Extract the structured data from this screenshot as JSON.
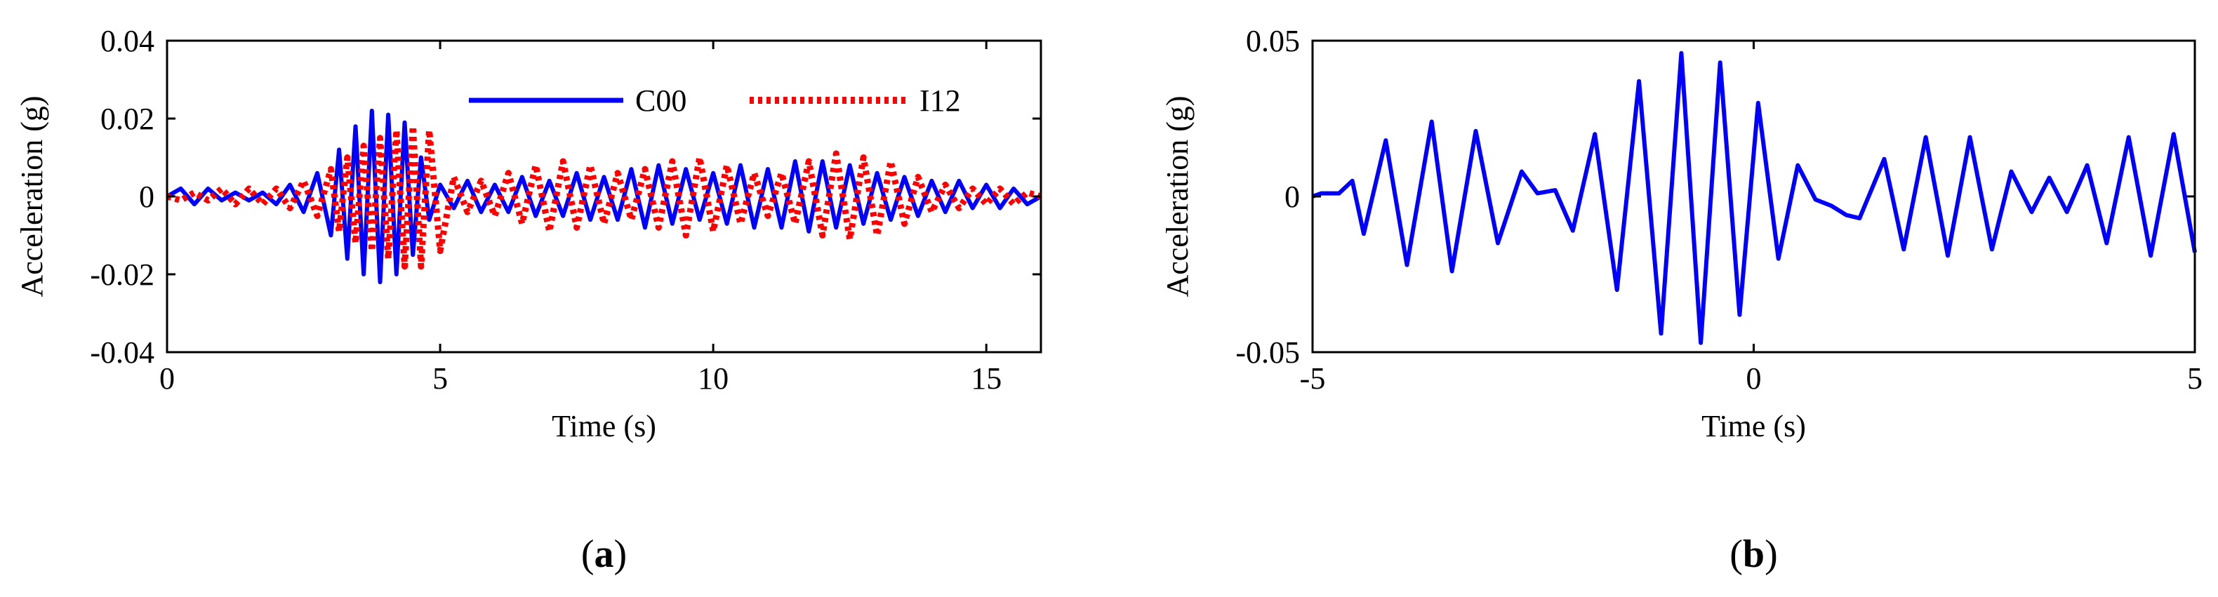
{
  "colors": {
    "blue": "#0000ff",
    "red": "#ff0000",
    "axis": "#000000"
  },
  "chart_data": [
    {
      "type": "line",
      "panel_label": {
        "open": "(",
        "letter": "a",
        "close": ")"
      },
      "xlabel": "Time (s)",
      "ylabel": "Acceleration (g)",
      "xlim": [
        0,
        16
      ],
      "ylim": [
        -0.04,
        0.04
      ],
      "xticks": [
        0,
        5,
        10,
        15
      ],
      "xtick_labels": [
        "0",
        "5",
        "10",
        "15"
      ],
      "yticks": [
        -0.04,
        -0.02,
        0,
        0.02,
        0.04
      ],
      "ytick_labels": [
        "-0.04",
        "-0.02",
        "0",
        "0.02",
        "0.04"
      ],
      "grid": false,
      "legend": "top-right",
      "series": [
        {
          "name": "C00",
          "color": "#0000ff",
          "style": "solid",
          "x": [
            0,
            0.25,
            0.5,
            0.75,
            1,
            1.25,
            1.5,
            1.75,
            2,
            2.25,
            2.5,
            2.75,
            3,
            3.15,
            3.3,
            3.45,
            3.6,
            3.75,
            3.9,
            4.05,
            4.2,
            4.35,
            4.5,
            4.65,
            4.8,
            5,
            5.25,
            5.5,
            5.75,
            6,
            6.25,
            6.5,
            6.75,
            7,
            7.25,
            7.5,
            7.75,
            8,
            8.25,
            8.5,
            8.75,
            9,
            9.25,
            9.5,
            9.75,
            10,
            10.25,
            10.5,
            10.75,
            11,
            11.25,
            11.5,
            11.75,
            12,
            12.25,
            12.5,
            12.75,
            13,
            13.25,
            13.5,
            13.75,
            14,
            14.25,
            14.5,
            14.75,
            15,
            15.25,
            15.5,
            15.75,
            16
          ],
          "y": [
            0,
            0.002,
            -0.002,
            0.002,
            -0.001,
            0.001,
            -0.001,
            0.001,
            -0.002,
            0.003,
            -0.004,
            0.006,
            -0.01,
            0.012,
            -0.016,
            0.018,
            -0.02,
            0.022,
            -0.022,
            0.021,
            -0.02,
            0.019,
            -0.015,
            0.01,
            -0.006,
            0.003,
            -0.003,
            0.004,
            -0.004,
            0.003,
            -0.004,
            0.005,
            -0.005,
            0.004,
            -0.005,
            0.006,
            -0.006,
            0.005,
            -0.006,
            0.007,
            -0.008,
            0.008,
            -0.007,
            0.007,
            -0.006,
            0.006,
            -0.007,
            0.008,
            -0.008,
            0.007,
            -0.008,
            0.009,
            -0.009,
            0.009,
            -0.008,
            0.008,
            -0.007,
            0.006,
            -0.006,
            0.005,
            -0.005,
            0.004,
            -0.004,
            0.004,
            -0.003,
            0.003,
            -0.003,
            0.002,
            -0.002,
            0
          ]
        },
        {
          "name": "I12",
          "color": "#ff0000",
          "style": "dotted",
          "x": [
            0,
            0.25,
            0.5,
            0.75,
            1,
            1.25,
            1.5,
            1.75,
            2,
            2.25,
            2.5,
            2.75,
            3,
            3.15,
            3.3,
            3.45,
            3.6,
            3.75,
            3.9,
            4.05,
            4.2,
            4.35,
            4.5,
            4.65,
            4.8,
            5,
            5.25,
            5.5,
            5.75,
            6,
            6.25,
            6.5,
            6.75,
            7,
            7.25,
            7.5,
            7.75,
            8,
            8.25,
            8.5,
            8.75,
            9,
            9.25,
            9.5,
            9.75,
            10,
            10.25,
            10.5,
            10.75,
            11,
            11.25,
            11.5,
            11.75,
            12,
            12.25,
            12.5,
            12.75,
            13,
            13.25,
            13.5,
            13.75,
            14,
            14.25,
            14.5,
            14.75,
            15,
            15.25,
            15.5,
            15.75,
            16
          ],
          "y": [
            0,
            -0.001,
            0.001,
            -0.001,
            0.002,
            -0.002,
            0.002,
            -0.002,
            0.002,
            -0.003,
            0.004,
            -0.005,
            0.007,
            -0.009,
            0.01,
            -0.012,
            0.013,
            -0.014,
            0.015,
            -0.016,
            0.017,
            -0.018,
            0.018,
            -0.018,
            0.017,
            -0.014,
            0.005,
            -0.004,
            0.004,
            -0.005,
            0.006,
            -0.007,
            0.008,
            -0.009,
            0.009,
            -0.008,
            0.008,
            -0.007,
            0.006,
            -0.006,
            0.007,
            -0.008,
            0.009,
            -0.01,
            0.01,
            -0.009,
            0.008,
            -0.007,
            0.006,
            -0.005,
            0.006,
            -0.007,
            0.009,
            -0.01,
            0.011,
            -0.011,
            0.01,
            -0.01,
            0.009,
            -0.007,
            0.005,
            -0.004,
            0.003,
            -0.003,
            0.002,
            -0.002,
            0.002,
            -0.002,
            0.001,
            0
          ]
        }
      ]
    },
    {
      "type": "line",
      "panel_label": {
        "open": "(",
        "letter": "b",
        "close": ")"
      },
      "xlabel": "Time (s)",
      "ylabel": "Acceleration (g)",
      "xlim": [
        -5,
        5
      ],
      "ylim": [
        -0.05,
        0.05
      ],
      "xticks": [
        -5,
        0,
        5
      ],
      "xtick_labels": [
        "-5",
        "0",
        "5"
      ],
      "yticks": [
        -0.05,
        0,
        0.05
      ],
      "ytick_labels": [
        "-0.05",
        "0",
        "0.05"
      ],
      "grid": false,
      "series": [
        {
          "color": "#0000ff",
          "style": "solid",
          "x": [
            -5,
            -4.9,
            -4.82,
            -4.7,
            -4.55,
            -4.42,
            -4.17,
            -3.93,
            -3.65,
            -3.42,
            -3.15,
            -2.9,
            -2.63,
            -2.45,
            -2.25,
            -2.05,
            -1.8,
            -1.55,
            -1.3,
            -1.05,
            -0.82,
            -0.6,
            -0.38,
            -0.16,
            0.05,
            0.28,
            0.5,
            0.7,
            0.88,
            1.05,
            1.2,
            1.48,
            1.7,
            1.95,
            2.2,
            2.45,
            2.7,
            2.92,
            3.15,
            3.35,
            3.55,
            3.78,
            4,
            4.25,
            4.5,
            4.76,
            5
          ],
          "y": [
            0,
            0.001,
            0.001,
            0.001,
            0.005,
            -0.012,
            0.018,
            -0.022,
            0.024,
            -0.024,
            0.021,
            -0.015,
            0.008,
            0.001,
            0.002,
            -0.011,
            0.02,
            -0.03,
            0.037,
            -0.044,
            0.046,
            -0.047,
            0.043,
            -0.038,
            0.03,
            -0.02,
            0.01,
            -0.001,
            -0.003,
            -0.006,
            -0.007,
            0.012,
            -0.017,
            0.019,
            -0.019,
            0.019,
            -0.017,
            0.008,
            -0.005,
            0.006,
            -0.005,
            0.01,
            -0.015,
            0.019,
            -0.019,
            0.02,
            -0.018
          ]
        }
      ]
    }
  ]
}
